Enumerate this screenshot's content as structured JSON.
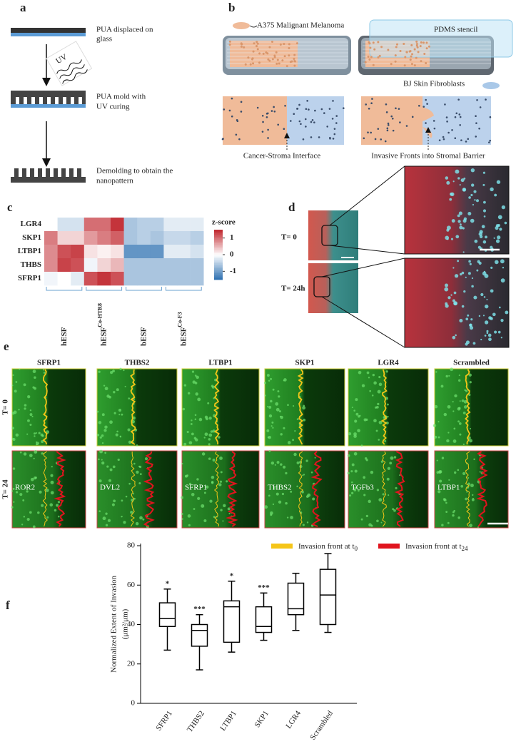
{
  "panel_a": {
    "label": "a",
    "step1": [
      "PUA displaced on",
      "glass"
    ],
    "uv": "UV",
    "step2": [
      "PUA mold with",
      "UV curing"
    ],
    "step3": [
      "Demolding to obtain the",
      "nanopattern"
    ]
  },
  "panel_b": {
    "label": "b",
    "cancer": "A375 Malignant Melanoma",
    "stencil": "PDMS stencil",
    "fibroblasts": "BJ Skin Fibroblasts",
    "interface": "Cancer-Stroma Interface",
    "fronts": "Invasive Fronts into Stromal Barrier"
  },
  "panel_c": {
    "label": "c"
  },
  "panel_d": {
    "label": "d",
    "rows": [
      "T= 0",
      "T= 24h"
    ]
  },
  "panel_e": {
    "label": "e",
    "columns": [
      "SFRP1",
      "THBS2",
      "LTBP1",
      "SKP1",
      "LGR4",
      "Scrambled"
    ],
    "rows": [
      "T= 0",
      "T= 24"
    ],
    "insets": [
      "ROR2",
      "DVL2",
      "SFRP1",
      "THBS2",
      "TGFb3",
      "LTBP1"
    ],
    "legend": [
      {
        "text": "Invasion front at t",
        "sub": "0",
        "color": "#f5c518"
      },
      {
        "text": "Invasion front at t",
        "sub": "24",
        "color": "#e0141e"
      }
    ]
  },
  "panel_f": {
    "label": "f"
  },
  "chart_data": [
    {
      "type": "heatmap",
      "rows": [
        "LGR4",
        "SKP1",
        "LTBP1",
        "THBS",
        "SFRP1"
      ],
      "groups": [
        {
          "name": "hESF"
        },
        {
          "name": "hESF",
          "sup": "Co-HTR8"
        },
        {
          "name": "bESF"
        },
        {
          "name": "bESF",
          "sup": "Co-F3"
        }
      ],
      "values": [
        [
          0,
          -0.3,
          -0.3,
          1,
          1,
          1.4,
          -0.6,
          -0.5,
          -0.5,
          -0.2,
          -0.2,
          -0.2
        ],
        [
          0.9,
          0.3,
          0.3,
          0.7,
          0.9,
          1.1,
          -0.6,
          -0.5,
          -0.6,
          -0.4,
          -0.4,
          -0.5
        ],
        [
          0.8,
          1.2,
          1.3,
          0.2,
          0.1,
          0.2,
          -1.1,
          -1.1,
          -1.1,
          -0.2,
          -0.2,
          -0.3
        ],
        [
          0.8,
          1.3,
          1.2,
          -0.1,
          0.3,
          0.5,
          -0.6,
          -0.6,
          -0.6,
          -0.6,
          -0.6,
          -0.6
        ],
        [
          -0.1,
          0,
          -0.2,
          1.2,
          1.4,
          1.2,
          -0.6,
          -0.6,
          -0.6,
          -0.6,
          -0.6,
          -0.6
        ]
      ],
      "colorbar_title": "z-score",
      "clim": [
        -1.5,
        1.5
      ],
      "cticks": [
        1,
        0,
        -1
      ],
      "colors": [
        "#2a6eb0",
        "#ffffff",
        "#c0262d"
      ]
    },
    {
      "type": "box",
      "ylabel": [
        "Normalized Extent of Invasion",
        "(μm²/μm)"
      ],
      "categories": [
        "SFRP1",
        "THBS2",
        "LTBP1",
        "SKP1",
        "LGR4",
        "Scrambled"
      ],
      "min": [
        27,
        17,
        26,
        32,
        37,
        36
      ],
      "q1": [
        39,
        29,
        31,
        36,
        45,
        40
      ],
      "median": [
        43,
        37,
        49,
        39,
        48,
        55
      ],
      "q3": [
        51,
        40,
        52,
        49,
        61,
        68
      ],
      "max": [
        58,
        45,
        62,
        56,
        66,
        76
      ],
      "annotations": [
        "*",
        "***",
        "*",
        "***",
        null,
        null
      ],
      "ylim": [
        0,
        80
      ],
      "yticks": [
        0,
        20,
        40,
        60,
        80
      ],
      "color": "#000000"
    }
  ]
}
